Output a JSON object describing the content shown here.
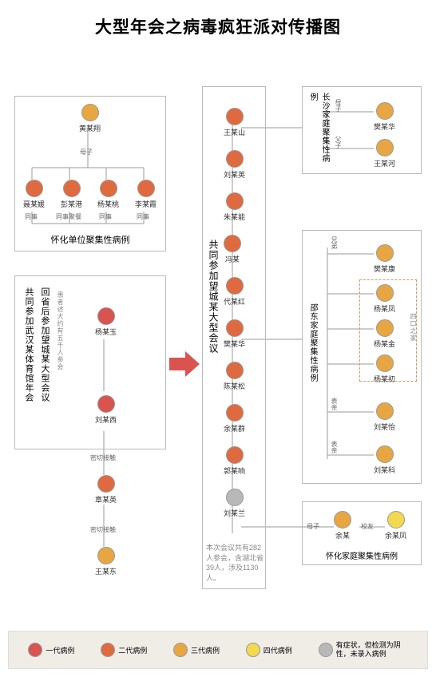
{
  "title": "大型年会之病毒疯狂派对传播图",
  "colors": {
    "gen1": "#d9534f",
    "gen2": "#e06a3f",
    "gen3": "#e8a642",
    "gen4": "#f2d94e",
    "neg": "#b8b8b8",
    "line": "#999999",
    "box_border": "#bbbbbb",
    "dash_border": "#c9a066",
    "legend_bg": "#f0ede7"
  },
  "legend": {
    "items": [
      {
        "key": "gen1",
        "color": "#d9534f",
        "label": "一代病例"
      },
      {
        "key": "gen2",
        "color": "#e06a3f",
        "label": "二代病例"
      },
      {
        "key": "gen3",
        "color": "#e8a642",
        "label": "三代病例"
      },
      {
        "key": "gen4",
        "color": "#f2d94e",
        "label": "四代病例"
      },
      {
        "key": "neg",
        "color": "#b8b8b8",
        "label": "有症状，但检测为阴性，未录入病例"
      }
    ]
  },
  "clusters": {
    "huaihua_unit": {
      "title": "怀化单位聚集性病例",
      "top_node": {
        "name": "黄某翔",
        "gen": "gen3"
      },
      "top_rel": "母子",
      "row": [
        {
          "name": "聂某媛",
          "gen": "gen2",
          "rel": "同事"
        },
        {
          "name": "彭某港",
          "gen": "gen2",
          "rel": "同事聚餐"
        },
        {
          "name": "杨某桃",
          "gen": "gen2",
          "rel": "同事"
        },
        {
          "name": "李某霞",
          "gen": "gen2",
          "rel": "同事"
        }
      ]
    },
    "wuhan": {
      "title1": "共同参加武汉某体育馆年会",
      "title2": "回省后参加望城某大型会议",
      "note": "患者述大约有五千人参会",
      "nodes": [
        {
          "name": "杨某玉",
          "gen": "gen1"
        },
        {
          "name": "刘某西",
          "gen": "gen1"
        }
      ],
      "chain": [
        {
          "rel": "密切接触",
          "name": "章某英",
          "gen": "gen2"
        },
        {
          "rel": "密切接触",
          "name": "王某东",
          "gen": "gen3"
        }
      ]
    },
    "wangcheng": {
      "title": "共同参加望城某大型会议",
      "footnote": "本次会议共有282人参会，含湖北省39人，涉及1130人。",
      "nodes": [
        {
          "name": "王某山",
          "gen": "gen2"
        },
        {
          "name": "刘某英",
          "gen": "gen2"
        },
        {
          "name": "朱某能",
          "gen": "gen2"
        },
        {
          "name": "冯某",
          "gen": "gen2"
        },
        {
          "name": "代某红",
          "gen": "gen2"
        },
        {
          "name": "樊某华",
          "gen": "gen2"
        },
        {
          "name": "陈某松",
          "gen": "gen2"
        },
        {
          "name": "余某群",
          "gen": "gen2"
        },
        {
          "name": "郭某响",
          "gen": "gen2"
        },
        {
          "name": "刘某兰",
          "gen": "neg"
        }
      ]
    },
    "changsha": {
      "title": "长沙家庭聚集性病例",
      "rels": [
        "母子",
        "父子"
      ],
      "nodes": [
        {
          "name": "樊某华",
          "gen": "gen3"
        },
        {
          "name": "王某河",
          "gen": "gen3"
        }
      ]
    },
    "shaodong": {
      "title": "邵东家庭聚集性病例",
      "side_label": "四口之家",
      "groups": [
        {
          "rel": "兄弟",
          "nodes": [
            {
              "name": "樊某康",
              "gen": "gen3"
            }
          ]
        },
        {
          "rel": "",
          "nodes": [
            {
              "name": "杨某凤",
              "gen": "gen3"
            },
            {
              "name": "杨某金",
              "gen": "gen3"
            },
            {
              "name": "杨某初",
              "gen": "gen3"
            }
          ]
        },
        {
          "rel": "表亲",
          "nodes": [
            {
              "name": "刘某怡",
              "gen": "gen3"
            }
          ]
        },
        {
          "rel": "表亲",
          "nodes": [
            {
              "name": "刘某科",
              "gen": "gen3"
            }
          ]
        }
      ]
    },
    "huaihua_family": {
      "title": "怀化家庭聚集性病例",
      "rel1": "母子",
      "rel2": "校友",
      "nodes": [
        {
          "name": "余某",
          "gen": "gen3"
        },
        {
          "name": "余某凤",
          "gen": "gen4"
        }
      ]
    }
  },
  "arrow_color": "#d9534f"
}
